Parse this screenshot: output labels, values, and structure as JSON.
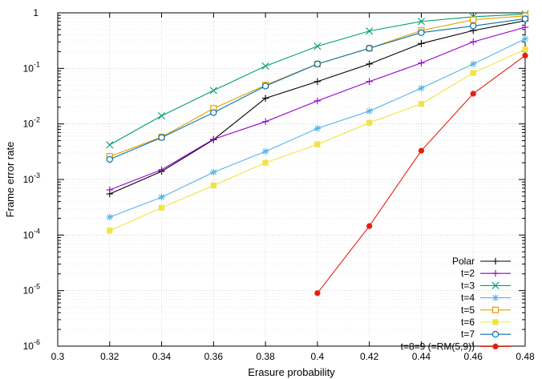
{
  "chart_data": {
    "type": "line",
    "title": "",
    "xlabel": "Erasure probability",
    "ylabel": "Frame error rate",
    "xlim": [
      0.3,
      0.48
    ],
    "ylim": [
      1e-06,
      1
    ],
    "yscale": "log",
    "grid": true,
    "legend_position": "bottom-right",
    "x_ticks": [
      "0.3",
      "0.32",
      "0.34",
      "0.36",
      "0.38",
      "0.4",
      "0.42",
      "0.44",
      "0.46",
      "0.48"
    ],
    "x_tick_values": [
      0.3,
      0.32,
      0.34,
      0.36,
      0.38,
      0.4,
      0.42,
      0.44,
      0.46,
      0.48
    ],
    "y_ticks": [
      {
        "base": "10",
        "exp": "-6",
        "value": 1e-06
      },
      {
        "base": "10",
        "exp": "-5",
        "value": 1e-05
      },
      {
        "base": "10",
        "exp": "-4",
        "value": 0.0001
      },
      {
        "base": "10",
        "exp": "-3",
        "value": 0.001
      },
      {
        "base": "10",
        "exp": "-2",
        "value": 0.01
      },
      {
        "base": "10",
        "exp": "-1",
        "value": 0.1
      },
      {
        "base": "1",
        "exp": "",
        "value": 1
      }
    ],
    "series": [
      {
        "name": "Polar",
        "color": "#000000",
        "marker": "plus",
        "x": [
          0.32,
          0.34,
          0.36,
          0.38,
          0.4,
          0.42,
          0.44,
          0.46,
          0.48
        ],
        "y": [
          0.00055,
          0.0014,
          0.0052,
          0.029,
          0.058,
          0.12,
          0.28,
          0.48,
          0.72
        ]
      },
      {
        "name": "t=2",
        "color": "#9400d3",
        "marker": "plus",
        "x": [
          0.32,
          0.34,
          0.36,
          0.38,
          0.4,
          0.42,
          0.44,
          0.46,
          0.48
        ],
        "y": [
          0.00065,
          0.0015,
          0.0053,
          0.011,
          0.026,
          0.058,
          0.125,
          0.3,
          0.55
        ]
      },
      {
        "name": "t=3",
        "color": "#009e73",
        "marker": "cross",
        "x": [
          0.32,
          0.34,
          0.36,
          0.38,
          0.4,
          0.42,
          0.44,
          0.46,
          0.48
        ],
        "y": [
          0.0042,
          0.014,
          0.04,
          0.11,
          0.25,
          0.47,
          0.7,
          0.85,
          0.95
        ]
      },
      {
        "name": "t=4",
        "color": "#56b4e9",
        "marker": "star",
        "x": [
          0.32,
          0.34,
          0.36,
          0.38,
          0.4,
          0.42,
          0.44,
          0.46,
          0.48
        ],
        "y": [
          0.00021,
          0.00048,
          0.00135,
          0.0032,
          0.0083,
          0.017,
          0.044,
          0.12,
          0.34
        ]
      },
      {
        "name": "t=5",
        "color": "#e69f00",
        "marker": "square-open",
        "x": [
          0.32,
          0.34,
          0.36,
          0.38,
          0.4,
          0.42,
          0.44,
          0.46,
          0.48
        ],
        "y": [
          0.0026,
          0.0058,
          0.019,
          0.05,
          0.12,
          0.23,
          0.48,
          0.75,
          0.88
        ]
      },
      {
        "name": "t=6",
        "color": "#f0e442",
        "marker": "square-filled",
        "x": [
          0.32,
          0.34,
          0.36,
          0.38,
          0.4,
          0.42,
          0.44,
          0.46,
          0.48
        ],
        "y": [
          0.00012,
          0.00031,
          0.00078,
          0.002,
          0.0043,
          0.0105,
          0.023,
          0.083,
          0.22
        ]
      },
      {
        "name": "t=7",
        "color": "#0072b2",
        "marker": "circle-open",
        "x": [
          0.32,
          0.34,
          0.36,
          0.38,
          0.4,
          0.42,
          0.44,
          0.46,
          0.48
        ],
        "y": [
          0.0023,
          0.0057,
          0.016,
          0.048,
          0.12,
          0.23,
          0.44,
          0.58,
          0.78
        ]
      },
      {
        "name": "t=8=9 (=RM(5,9))",
        "color": "#e51e10",
        "marker": "circle-filled",
        "x": [
          0.4,
          0.42,
          0.44,
          0.46,
          0.48
        ],
        "y": [
          9e-06,
          0.000145,
          0.0033,
          0.035,
          0.17
        ]
      }
    ]
  }
}
